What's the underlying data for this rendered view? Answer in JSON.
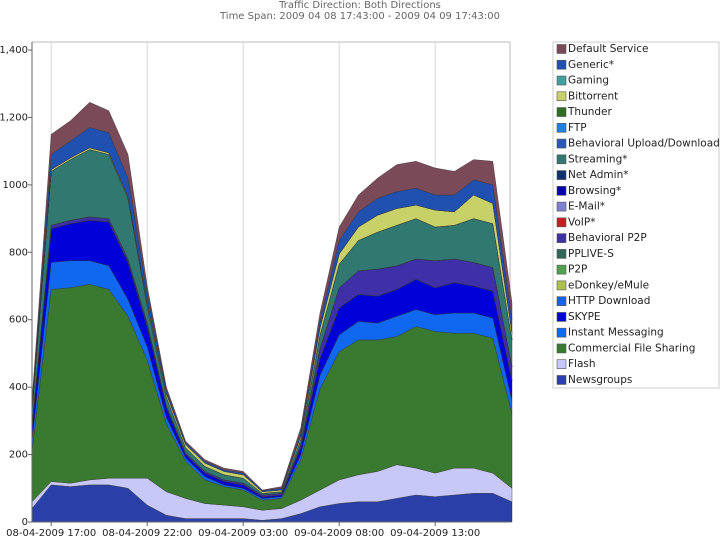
{
  "chart_data": {
    "type": "stacked_area",
    "title": "Traffic Direction: Both Directions",
    "subtitle": "Time Span: 2009 04 08 17:43:00 - 2009 04 09 17:43:00",
    "categories": [
      null,
      "08-04-2009 17:00",
      null,
      null,
      null,
      null,
      "08-04-2009 22:00",
      null,
      null,
      null,
      null,
      "09-04-2009 03:00",
      null,
      null,
      null,
      null,
      "09-04-2009 08:00",
      null,
      null,
      null,
      null,
      "09-04-2009 13:00",
      null,
      null,
      null,
      null
    ],
    "ylim": [
      0,
      1400
    ],
    "yticks": [
      0,
      200,
      400,
      600,
      800,
      1000,
      {
        "value": 1200,
        "label": "1,200"
      },
      {
        "value": 1400,
        "label": "1,400"
      }
    ],
    "grid": true,
    "legend": "right",
    "series": [
      {
        "name": "Default Service",
        "color": "#7a4a58",
        "values": [
          15,
          60,
          60,
          75,
          65,
          70,
          20,
          10,
          5,
          5,
          5,
          5,
          2,
          5,
          15,
          25,
          40,
          50,
          60,
          80,
          80,
          80,
          70,
          60,
          70,
          50
        ]
      },
      {
        "name": "Generic*",
        "color": "#2050b0",
        "values": [
          10,
          45,
          50,
          60,
          60,
          55,
          30,
          10,
          5,
          5,
          5,
          5,
          3,
          5,
          10,
          20,
          40,
          45,
          50,
          50,
          50,
          45,
          50,
          45,
          55,
          40
        ]
      },
      {
        "name": "Gaming",
        "color": "#40a0a0",
        "values": [
          0,
          0,
          0,
          0,
          0,
          0,
          0,
          0,
          0,
          0,
          0,
          0,
          0,
          0,
          0,
          0,
          0,
          0,
          0,
          0,
          0,
          0,
          0,
          0,
          0,
          0
        ]
      },
      {
        "name": "Bittorrent",
        "color": "#c8d068",
        "values": [
          5,
          5,
          5,
          5,
          5,
          5,
          10,
          10,
          10,
          10,
          10,
          10,
          5,
          5,
          10,
          20,
          30,
          40,
          50,
          50,
          40,
          50,
          40,
          70,
          60,
          20
        ]
      },
      {
        "name": "Thunder",
        "color": "#2e6e1e",
        "values": [
          0,
          0,
          0,
          0,
          0,
          0,
          0,
          0,
          0,
          0,
          0,
          0,
          0,
          0,
          0,
          0,
          0,
          0,
          0,
          0,
          0,
          0,
          0,
          0,
          0,
          0
        ]
      },
      {
        "name": "FTP",
        "color": "#2080e0",
        "values": [
          0,
          0,
          0,
          0,
          0,
          0,
          0,
          0,
          0,
          0,
          0,
          0,
          0,
          0,
          0,
          0,
          0,
          0,
          0,
          0,
          0,
          0,
          0,
          0,
          0,
          0
        ]
      },
      {
        "name": "Behavioral Upload/Download",
        "color": "#2858b8",
        "values": [
          0,
          0,
          0,
          0,
          0,
          0,
          0,
          0,
          0,
          0,
          0,
          0,
          0,
          0,
          0,
          0,
          0,
          0,
          0,
          0,
          0,
          0,
          0,
          0,
          0,
          0
        ]
      },
      {
        "name": "Streaming*",
        "color": "#307870",
        "values": [
          40,
          160,
          180,
          200,
          190,
          180,
          50,
          25,
          15,
          15,
          15,
          15,
          5,
          5,
          15,
          40,
          70,
          90,
          110,
          120,
          120,
          100,
          100,
          130,
          130,
          80
        ]
      },
      {
        "name": "Net Admin*",
        "color": "#103070",
        "values": [
          0,
          0,
          0,
          0,
          0,
          0,
          0,
          0,
          0,
          0,
          0,
          0,
          0,
          0,
          0,
          0,
          0,
          0,
          0,
          0,
          0,
          0,
          0,
          0,
          0,
          0
        ]
      },
      {
        "name": "Browsing*",
        "color": "#0000b0",
        "values": [
          0,
          0,
          0,
          0,
          0,
          0,
          0,
          0,
          0,
          0,
          0,
          0,
          0,
          0,
          0,
          0,
          0,
          0,
          0,
          0,
          0,
          0,
          0,
          0,
          0,
          0
        ]
      },
      {
        "name": "E-Mail*",
        "color": "#8080d0",
        "values": [
          0,
          0,
          0,
          0,
          0,
          0,
          0,
          0,
          0,
          0,
          0,
          0,
          0,
          0,
          0,
          0,
          0,
          0,
          0,
          0,
          0,
          0,
          0,
          0,
          0,
          0
        ]
      },
      {
        "name": "VoIP*",
        "color": "#c02020",
        "values": [
          0,
          0,
          0,
          0,
          0,
          0,
          0,
          0,
          0,
          0,
          0,
          0,
          0,
          0,
          0,
          0,
          0,
          0,
          0,
          0,
          0,
          0,
          0,
          0,
          0,
          0
        ]
      },
      {
        "name": "Behavioral P2P",
        "color": "#4030a8",
        "values": [
          10,
          10,
          10,
          10,
          10,
          10,
          10,
          5,
          5,
          5,
          5,
          5,
          5,
          5,
          10,
          30,
          60,
          70,
          80,
          70,
          60,
          80,
          70,
          70,
          70,
          40
        ]
      },
      {
        "name": "PPLIVE-S",
        "color": "#306858",
        "values": [
          0,
          0,
          0,
          0,
          0,
          0,
          0,
          0,
          0,
          0,
          0,
          0,
          0,
          0,
          0,
          0,
          0,
          0,
          0,
          0,
          0,
          0,
          0,
          0,
          0,
          0
        ]
      },
      {
        "name": "P2P",
        "color": "#50a050",
        "values": [
          0,
          0,
          0,
          0,
          0,
          0,
          0,
          0,
          0,
          0,
          0,
          0,
          0,
          0,
          0,
          0,
          0,
          0,
          0,
          0,
          0,
          0,
          0,
          0,
          0,
          0
        ]
      },
      {
        "name": "eDonkey/eMule",
        "color": "#b0c050",
        "values": [
          0,
          0,
          0,
          0,
          0,
          0,
          0,
          0,
          0,
          0,
          0,
          0,
          0,
          0,
          0,
          0,
          0,
          0,
          0,
          0,
          0,
          0,
          0,
          0,
          0,
          0
        ]
      },
      {
        "name": "HTTP Download",
        "color": "#1860e8",
        "values": [
          0,
          0,
          0,
          0,
          0,
          0,
          0,
          0,
          0,
          0,
          0,
          0,
          0,
          0,
          0,
          0,
          0,
          0,
          0,
          0,
          0,
          0,
          0,
          0,
          0,
          0
        ]
      },
      {
        "name": "SKYPE",
        "color": "#0000d8",
        "values": [
          40,
          100,
          110,
          120,
          130,
          110,
          60,
          30,
          10,
          10,
          10,
          10,
          5,
          5,
          20,
          50,
          80,
          80,
          80,
          80,
          90,
          80,
          90,
          80,
          80,
          60
        ]
      },
      {
        "name": "Instant Messaging",
        "color": "#1068f0",
        "values": [
          30,
          80,
          80,
          70,
          70,
          50,
          40,
          20,
          10,
          10,
          5,
          5,
          5,
          5,
          15,
          40,
          50,
          55,
          50,
          60,
          50,
          50,
          60,
          60,
          60,
          40
        ]
      },
      {
        "name": "Commercial File Sharing",
        "color": "#3a7a30",
        "values": [
          150,
          570,
          580,
          580,
          560,
          480,
          350,
          200,
          110,
          70,
          55,
          50,
          30,
          30,
          120,
          300,
          380,
          400,
          390,
          380,
          420,
          420,
          400,
          400,
          400,
          220
        ]
      },
      {
        "name": "Flash",
        "color": "#c8c8f8",
        "values": [
          20,
          10,
          10,
          15,
          20,
          30,
          80,
          70,
          60,
          45,
          40,
          35,
          30,
          30,
          40,
          50,
          70,
          80,
          90,
          100,
          80,
          70,
          80,
          75,
          60,
          40
        ]
      },
      {
        "name": "Newsgroups",
        "color": "#2a40a8",
        "values": [
          40,
          110,
          105,
          110,
          110,
          100,
          50,
          20,
          10,
          10,
          10,
          10,
          5,
          10,
          25,
          45,
          55,
          60,
          60,
          70,
          80,
          75,
          80,
          85,
          85,
          60
        ]
      }
    ]
  }
}
